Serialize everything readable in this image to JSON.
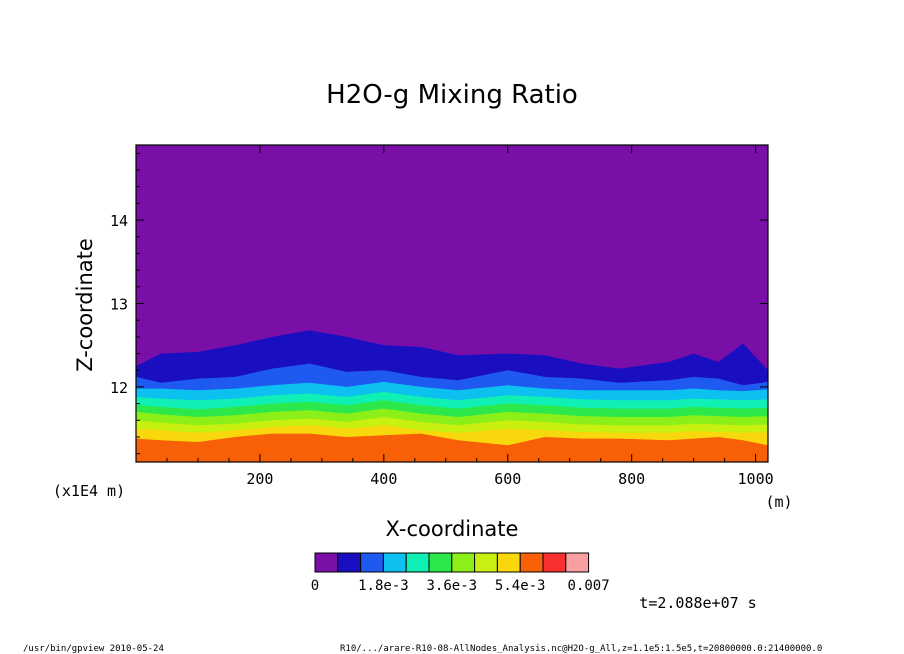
{
  "chart_data": {
    "type": "heatmap",
    "title": "H2O-g Mixing Ratio",
    "xlabel": "X-coordinate",
    "x_unit_label": "(m)",
    "ylabel": "Z-coordinate",
    "y_scale_label": "(x1E4 m)",
    "xlim": [
      0,
      1020
    ],
    "ylim": [
      11.1,
      14.9
    ],
    "x_ticks": [
      200,
      400,
      600,
      800,
      1000
    ],
    "y_ticks": [
      12,
      13,
      14
    ],
    "colorbar": {
      "colors": [
        "#7a0fa8",
        "#1a0fc0",
        "#1e5af0",
        "#0cc0f0",
        "#10f0b4",
        "#2ce84a",
        "#8cf018",
        "#c8f010",
        "#f8d80c",
        "#f86008",
        "#f83030",
        "#f8a0a0"
      ],
      "tick_labels": [
        "0",
        "1.8e-3",
        "3.6e-3",
        "5.4e-3",
        "0.007"
      ],
      "tick_positions": [
        0,
        3,
        6,
        9,
        12
      ]
    },
    "band_colors": [
      "#1a0fc0",
      "#1e5af0",
      "#0cc0f0",
      "#10f0b4",
      "#2ce84a",
      "#8cf018",
      "#c8f010",
      "#f8d80c",
      "#f86008"
    ],
    "band_boundaries": [
      {
        "x": [
          0,
          40,
          100,
          160,
          220,
          280,
          340,
          400,
          460,
          520,
          600,
          660,
          720,
          780,
          860,
          900,
          940,
          980,
          1020
        ],
        "z": [
          12.25,
          12.4,
          12.42,
          12.5,
          12.6,
          12.68,
          12.6,
          12.5,
          12.48,
          12.38,
          12.4,
          12.38,
          12.28,
          12.22,
          12.3,
          12.4,
          12.3,
          12.52,
          12.2
        ]
      },
      {
        "x": [
          0,
          40,
          100,
          160,
          220,
          280,
          340,
          400,
          460,
          520,
          600,
          660,
          720,
          780,
          860,
          900,
          940,
          980,
          1020
        ],
        "z": [
          12.12,
          12.05,
          12.1,
          12.12,
          12.22,
          12.28,
          12.18,
          12.2,
          12.12,
          12.08,
          12.2,
          12.12,
          12.1,
          12.05,
          12.08,
          12.12,
          12.1,
          12.02,
          12.06
        ]
      },
      {
        "x": [
          0,
          40,
          100,
          160,
          220,
          280,
          340,
          400,
          460,
          520,
          600,
          660,
          720,
          780,
          860,
          900,
          940,
          980,
          1020
        ],
        "z": [
          11.98,
          11.98,
          11.96,
          11.98,
          12.02,
          12.05,
          12.0,
          12.06,
          12.0,
          11.96,
          12.02,
          11.98,
          11.96,
          11.96,
          11.96,
          11.98,
          11.96,
          11.95,
          11.97
        ]
      },
      {
        "x": [
          0,
          40,
          100,
          160,
          220,
          280,
          340,
          400,
          460,
          520,
          600,
          660,
          720,
          780,
          860,
          900,
          940,
          980,
          1020
        ],
        "z": [
          11.88,
          11.86,
          11.84,
          11.86,
          11.9,
          11.92,
          11.88,
          11.94,
          11.88,
          11.84,
          11.9,
          11.88,
          11.85,
          11.84,
          11.84,
          11.86,
          11.85,
          11.84,
          11.85
        ]
      },
      {
        "x": [
          0,
          40,
          100,
          160,
          220,
          280,
          340,
          400,
          460,
          520,
          600,
          660,
          720,
          780,
          860,
          900,
          940,
          980,
          1020
        ],
        "z": [
          11.78,
          11.76,
          11.73,
          11.76,
          11.8,
          11.82,
          11.78,
          11.84,
          11.78,
          11.74,
          11.8,
          11.78,
          11.75,
          11.74,
          11.74,
          11.76,
          11.75,
          11.74,
          11.75
        ]
      },
      {
        "x": [
          0,
          40,
          100,
          160,
          220,
          280,
          340,
          400,
          460,
          520,
          600,
          660,
          720,
          780,
          860,
          900,
          940,
          980,
          1020
        ],
        "z": [
          11.7,
          11.67,
          11.64,
          11.66,
          11.7,
          11.72,
          11.68,
          11.74,
          11.68,
          11.64,
          11.7,
          11.68,
          11.65,
          11.64,
          11.64,
          11.66,
          11.65,
          11.64,
          11.65
        ]
      },
      {
        "x": [
          0,
          40,
          100,
          160,
          220,
          280,
          340,
          400,
          460,
          520,
          600,
          660,
          720,
          780,
          860,
          900,
          940,
          980,
          1020
        ],
        "z": [
          11.6,
          11.57,
          11.54,
          11.56,
          11.6,
          11.62,
          11.58,
          11.64,
          11.58,
          11.54,
          11.6,
          11.58,
          11.55,
          11.54,
          11.54,
          11.56,
          11.55,
          11.54,
          11.55
        ]
      },
      {
        "x": [
          0,
          40,
          100,
          160,
          220,
          280,
          340,
          400,
          460,
          520,
          600,
          660,
          720,
          780,
          860,
          900,
          940,
          980,
          1020
        ],
        "z": [
          11.5,
          11.48,
          11.45,
          11.48,
          11.52,
          11.54,
          11.5,
          11.54,
          11.48,
          11.45,
          11.5,
          11.48,
          11.46,
          11.45,
          11.45,
          11.47,
          11.46,
          11.45,
          11.46
        ]
      },
      {
        "x": [
          0,
          40,
          100,
          160,
          220,
          280,
          340,
          400,
          460,
          520,
          600,
          660,
          720,
          780,
          860,
          900,
          940,
          980,
          1020
        ],
        "z": [
          11.38,
          11.36,
          11.34,
          11.4,
          11.44,
          11.44,
          11.4,
          11.42,
          11.44,
          11.36,
          11.3,
          11.4,
          11.38,
          11.38,
          11.36,
          11.38,
          11.4,
          11.36,
          11.3
        ]
      }
    ],
    "time_label": "t=2.088e+07 s"
  },
  "footer": {
    "left": "/usr/bin/gpview  2010-05-24",
    "right": "R10/.../arare-R10-08-AllNodes_Analysis.nc@H2O-g_All,z=1.1e5:1.5e5,t=20800000.0:21400000.0"
  }
}
